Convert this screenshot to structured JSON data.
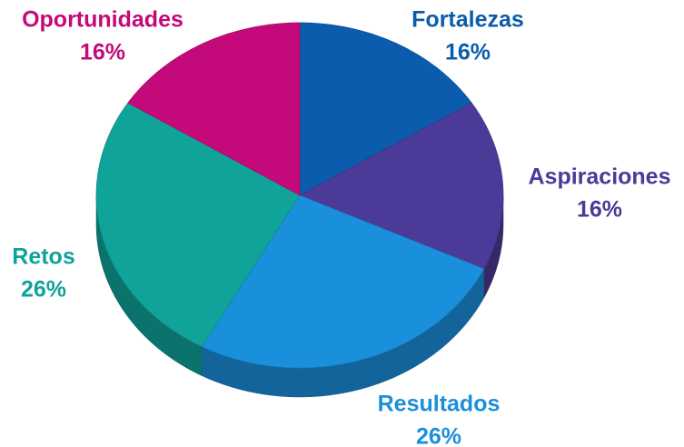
{
  "chart_data": {
    "type": "pie",
    "categories": [
      "Fortalezas",
      "Aspiraciones",
      "Resultados",
      "Retos",
      "Oportunidades"
    ],
    "values": [
      16,
      16,
      26,
      26,
      16
    ],
    "value_labels": [
      "16%",
      "16%",
      "26%",
      "26%",
      "16%"
    ],
    "colors": [
      "#0b5cad",
      "#4b3a98",
      "#1a8fdc",
      "#10a39a",
      "#c4097a"
    ]
  }
}
